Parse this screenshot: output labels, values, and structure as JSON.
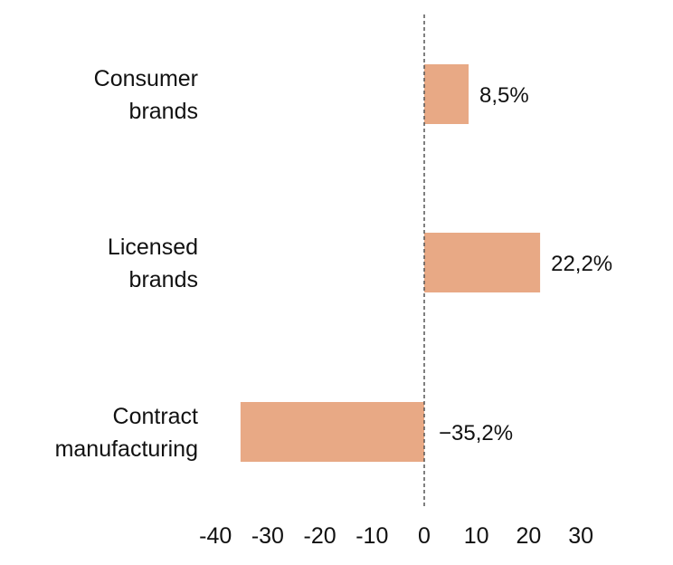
{
  "chart_data": {
    "type": "bar",
    "orientation": "horizontal",
    "categories": [
      "Consumer\nbrands",
      "Licensed\nbrands",
      "Contract\nmanufacturing"
    ],
    "values": [
      8.5,
      22.2,
      -35.2
    ],
    "value_labels": [
      "8,5%",
      "22,2%",
      "−35,2%"
    ],
    "xlim": [
      -40,
      30
    ],
    "xticks": [
      -40,
      -30,
      -20,
      -10,
      0,
      10,
      20,
      30
    ],
    "xtick_labels": [
      "-40",
      "-30",
      "-20",
      "-10",
      "0",
      "10",
      "20",
      "30"
    ],
    "zero_line": "dashed",
    "grid": false,
    "title": "",
    "xlabel": "",
    "ylabel": "",
    "bar_color": "#E8A985",
    "zero_line_color": "#555555",
    "text_color": "#111111"
  }
}
